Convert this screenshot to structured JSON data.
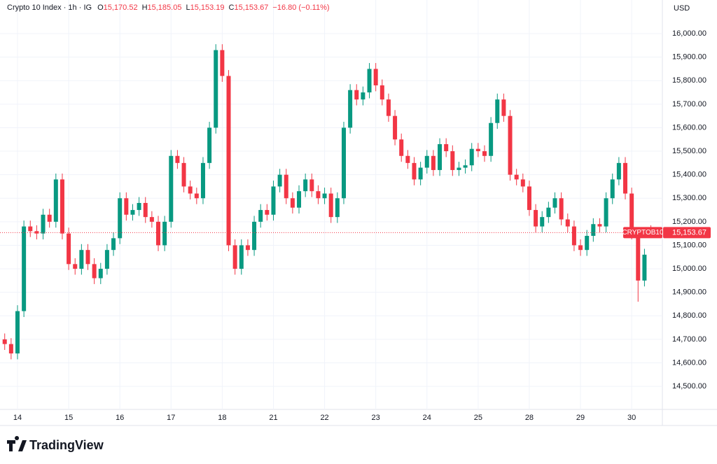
{
  "header": {
    "symbol": "Crypto 10 Index · 1h · IG",
    "fields": [
      {
        "key": "O",
        "value": "15,170.52"
      },
      {
        "key": "H",
        "value": "15,185.05"
      },
      {
        "key": "L",
        "value": "15,153.19"
      },
      {
        "key": "C",
        "value": "15,153.67"
      }
    ],
    "change": "−16.80 (−0.11%)"
  },
  "chart_data": {
    "type": "candlestick",
    "currency": "USD",
    "symbol_tag": "CRYPTOB10",
    "last_price_label": "15,153.67",
    "up_color": "#089981",
    "down_color": "#f23645",
    "grid": true,
    "xlim": [
      -0.342,
      12.6
    ],
    "ylim": [
      14402,
      16143
    ],
    "xticks": [
      {
        "value": 0,
        "label": "14"
      },
      {
        "value": 1,
        "label": "15"
      },
      {
        "value": 2,
        "label": "16"
      },
      {
        "value": 3,
        "label": "17"
      },
      {
        "value": 4,
        "label": "18"
      },
      {
        "value": 5,
        "label": "21"
      },
      {
        "value": 6,
        "label": "22"
      },
      {
        "value": 7,
        "label": "23"
      },
      {
        "value": 8,
        "label": "24"
      },
      {
        "value": 9,
        "label": "25"
      },
      {
        "value": 10,
        "label": "28"
      },
      {
        "value": 11,
        "label": "29"
      },
      {
        "value": 12,
        "label": "30"
      }
    ],
    "yticks": [
      {
        "value": 14500,
        "label": "14,500.00"
      },
      {
        "value": 14600,
        "label": "14,600.00"
      },
      {
        "value": 14700,
        "label": "14,700.00"
      },
      {
        "value": 14800,
        "label": "14,800.00"
      },
      {
        "value": 14900,
        "label": "14,900.00"
      },
      {
        "value": 15000,
        "label": "15,000.00"
      },
      {
        "value": 15100,
        "label": "15,100.00"
      },
      {
        "value": 15200,
        "label": "15,200.00"
      },
      {
        "value": 15300,
        "label": "15,300.00"
      },
      {
        "value": 15400,
        "label": "15,400.00"
      },
      {
        "value": 15500,
        "label": "15,500.00"
      },
      {
        "value": 15600,
        "label": "15,600.00"
      },
      {
        "value": 15700,
        "label": "15,700.00"
      },
      {
        "value": 15800,
        "label": "15,800.00"
      },
      {
        "value": 15900,
        "label": "15,900.00"
      },
      {
        "value": 16000,
        "label": "16,000.00"
      }
    ],
    "x": [
      -0.25,
      -0.125,
      0,
      0.125,
      0.25,
      0.375,
      0.5,
      0.625,
      0.75,
      0.875,
      1,
      1.125,
      1.25,
      1.375,
      1.5,
      1.625,
      1.75,
      1.875,
      2,
      2.125,
      2.25,
      2.375,
      2.5,
      2.625,
      2.75,
      2.875,
      3,
      3.125,
      3.25,
      3.375,
      3.5,
      3.625,
      3.75,
      3.875,
      4,
      4.125,
      4.25,
      4.375,
      4.5,
      4.625,
      4.75,
      4.875,
      5,
      5.125,
      5.25,
      5.375,
      5.5,
      5.625,
      5.75,
      5.875,
      6,
      6.125,
      6.25,
      6.375,
      6.5,
      6.625,
      6.75,
      6.875,
      7,
      7.125,
      7.25,
      7.375,
      7.5,
      7.625,
      7.75,
      7.875,
      8,
      8.125,
      8.25,
      8.375,
      8.5,
      8.625,
      8.75,
      8.875,
      9,
      9.125,
      9.25,
      9.375,
      9.5,
      9.625,
      9.75,
      9.875,
      10,
      10.125,
      10.25,
      10.375,
      10.5,
      10.625,
      10.75,
      10.875,
      11,
      11.125,
      11.25,
      11.375,
      11.5,
      11.625,
      11.75,
      11.875,
      12,
      12.125,
      12.25,
      12.375
    ],
    "open": [
      14700,
      14680,
      14640,
      14820,
      15180,
      15160,
      15150,
      15230,
      15200,
      15380,
      15150,
      15020,
      15000,
      15080,
      15020,
      14960,
      15000,
      15080,
      15130,
      15300,
      15230,
      15250,
      15280,
      15220,
      15200,
      15100,
      15200,
      15480,
      15450,
      15350,
      15320,
      15300,
      15450,
      15600,
      15930,
      15820,
      15100,
      15000,
      15100,
      15080,
      15200,
      15250,
      15230,
      15350,
      15400,
      15300,
      15260,
      15330,
      15380,
      15330,
      15300,
      15320,
      15220,
      15300,
      15600,
      15760,
      15720,
      15750,
      15850,
      15780,
      15720,
      15650,
      15550,
      15480,
      15450,
      15380,
      15430,
      15480,
      15420,
      15530,
      15500,
      15420,
      15430,
      15440,
      15510,
      15500,
      15480,
      15620,
      15720,
      15650,
      15400,
      15380,
      15350,
      15250,
      15180,
      15220,
      15260,
      15300,
      15210,
      15180,
      15100,
      15080,
      15140,
      15190,
      15180,
      15300,
      15380,
      15450,
      15320,
      15150,
      14950,
      15170.52
    ],
    "high": [
      14725,
      14705,
      14845,
      15205,
      15205,
      15185,
      15255,
      15255,
      15405,
      15405,
      15175,
      15045,
      15105,
      15105,
      15045,
      15025,
      15105,
      15155,
      15325,
      15325,
      15275,
      15305,
      15305,
      15245,
      15225,
      15225,
      15505,
      15505,
      15475,
      15375,
      15345,
      15475,
      15625,
      15955,
      15955,
      15845,
      15125,
      15125,
      15125,
      15225,
      15275,
      15275,
      15375,
      15425,
      15425,
      15325,
      15355,
      15405,
      15405,
      15355,
      15345,
      15345,
      15325,
      15625,
      15785,
      15785,
      15775,
      15875,
      15875,
      15805,
      15745,
      15675,
      15575,
      15505,
      15475,
      15455,
      15505,
      15505,
      15555,
      15555,
      15525,
      15455,
      15465,
      15535,
      15535,
      15525,
      15645,
      15745,
      15745,
      15675,
      15425,
      15405,
      15375,
      15275,
      15245,
      15285,
      15325,
      15325,
      15235,
      15205,
      15125,
      15165,
      15215,
      15215,
      15325,
      15405,
      15475,
      15475,
      15345,
      15175,
      15085,
      15185.05
    ],
    "low": [
      14655,
      14615,
      14615,
      14795,
      15135,
      15125,
      15125,
      15175,
      15175,
      15125,
      14995,
      14975,
      14975,
      14995,
      14935,
      14935,
      14975,
      15055,
      15105,
      15205,
      15205,
      15225,
      15195,
      15175,
      15075,
      15075,
      15175,
      15425,
      15325,
      15295,
      15275,
      15275,
      15425,
      15575,
      15795,
      15075,
      14975,
      14975,
      15055,
      15055,
      15175,
      15205,
      15205,
      15325,
      15275,
      15235,
      15235,
      15305,
      15305,
      15275,
      15275,
      15195,
      15195,
      15275,
      15575,
      15695,
      15695,
      15725,
      15755,
      15695,
      15625,
      15525,
      15455,
      15425,
      15355,
      15355,
      15405,
      15395,
      15395,
      15475,
      15395,
      15395,
      15405,
      15415,
      15475,
      15455,
      15455,
      15595,
      15625,
      15375,
      15355,
      15325,
      15225,
      15155,
      15155,
      15195,
      15235,
      15185,
      15155,
      15075,
      15055,
      15055,
      15115,
      15155,
      15155,
      15275,
      15355,
      15295,
      15125,
      14860,
      14925,
      15153.19
    ],
    "close": [
      14680,
      14640,
      14820,
      15180,
      15160,
      15150,
      15230,
      15200,
      15380,
      15150,
      15020,
      15000,
      15080,
      15020,
      14960,
      15000,
      15080,
      15130,
      15300,
      15230,
      15250,
      15280,
      15220,
      15200,
      15100,
      15200,
      15480,
      15450,
      15350,
      15320,
      15300,
      15450,
      15600,
      15930,
      15820,
      15100,
      15000,
      15100,
      15080,
      15200,
      15250,
      15230,
      15350,
      15400,
      15300,
      15260,
      15330,
      15380,
      15330,
      15300,
      15320,
      15220,
      15300,
      15600,
      15760,
      15720,
      15750,
      15850,
      15780,
      15720,
      15650,
      15550,
      15480,
      15450,
      15380,
      15430,
      15480,
      15420,
      15530,
      15500,
      15420,
      15430,
      15440,
      15510,
      15500,
      15480,
      15620,
      15720,
      15650,
      15400,
      15380,
      15350,
      15250,
      15180,
      15220,
      15260,
      15300,
      15210,
      15180,
      15100,
      15080,
      15140,
      15190,
      15180,
      15300,
      15380,
      15450,
      15320,
      15150,
      14950,
      15060,
      15153.67
    ]
  },
  "logo": "TradingView"
}
